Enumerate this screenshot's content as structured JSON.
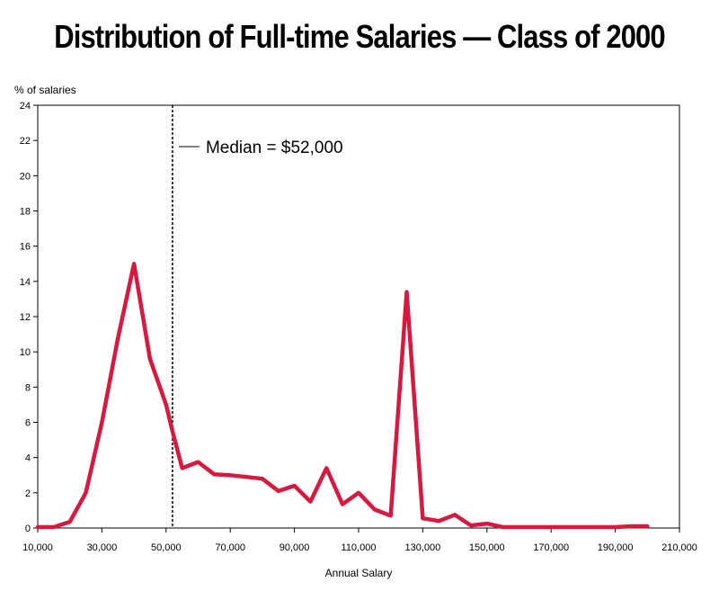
{
  "chart_data": {
    "type": "line",
    "title": "Distribution of Full-time Salaries — Class of 2000",
    "xlabel": "Annual Salary",
    "ylabel": "% of salaries",
    "xlim": [
      10000,
      210000
    ],
    "ylim": [
      0,
      24
    ],
    "x_ticks": [
      10000,
      30000,
      50000,
      70000,
      90000,
      110000,
      130000,
      150000,
      170000,
      190000,
      210000
    ],
    "x_tick_labels": [
      "10,000",
      "30,000",
      "50,000",
      "70,000",
      "90,000",
      "110,000",
      "130,000",
      "150,000",
      "170,000",
      "190,000",
      "210,000"
    ],
    "y_ticks": [
      0,
      2,
      4,
      6,
      8,
      10,
      12,
      14,
      16,
      18,
      20,
      22,
      24
    ],
    "y_tick_labels": [
      "0",
      "2",
      "4",
      "6",
      "8",
      "10",
      "12",
      "14",
      "16",
      "18",
      "20",
      "22",
      "24"
    ],
    "grid": false,
    "series": [
      {
        "name": "% of salaries",
        "color": "#d7193f",
        "x": [
          10000,
          15000,
          20000,
          25000,
          30000,
          35000,
          40000,
          45000,
          50000,
          52000,
          55000,
          60000,
          65000,
          70000,
          75000,
          80000,
          85000,
          90000,
          95000,
          100000,
          105000,
          110000,
          115000,
          120000,
          125000,
          130000,
          135000,
          140000,
          145000,
          150000,
          155000,
          160000,
          165000,
          170000,
          175000,
          180000,
          185000,
          190000,
          195000,
          200000
        ],
        "values": [
          0.05,
          0.05,
          0.35,
          2.0,
          6.0,
          10.8,
          15.0,
          9.6,
          7.0,
          5.5,
          3.4,
          3.75,
          3.05,
          3.0,
          2.9,
          2.8,
          2.1,
          2.4,
          1.5,
          3.4,
          1.35,
          2.0,
          1.05,
          0.7,
          13.4,
          0.55,
          0.4,
          0.75,
          0.15,
          0.25,
          0.05,
          0.05,
          0.05,
          0.05,
          0.05,
          0.05,
          0.05,
          0.05,
          0.1,
          0.1
        ]
      }
    ],
    "reference_line": {
      "x": 52000,
      "label": "Median = $52,000",
      "style": "dashed"
    }
  }
}
